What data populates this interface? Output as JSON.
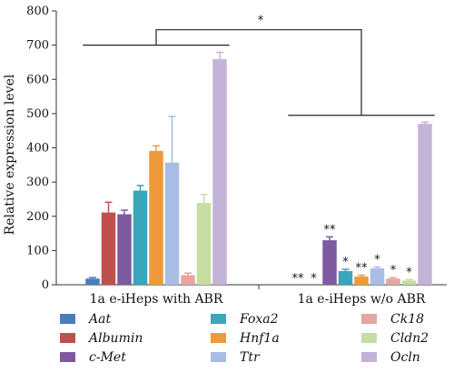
{
  "chart_data": {
    "type": "bar",
    "ylabel": "Relative expression level",
    "ylim": [
      0,
      800
    ],
    "yticks": [
      0,
      100,
      200,
      300,
      400,
      500,
      600,
      700,
      800
    ],
    "categories": [
      "1a e-iHeps with ABR",
      "1a e-iHeps w/o ABR"
    ],
    "series": [
      {
        "name": "Aat",
        "color": "#4a7ebb",
        "values": [
          18,
          0
        ],
        "errors": [
          3,
          0
        ],
        "marks": [
          "",
          "**"
        ]
      },
      {
        "name": "Albumin",
        "color": "#c0504d",
        "values": [
          211,
          0
        ],
        "errors": [
          30,
          0
        ],
        "marks": [
          "",
          "*"
        ]
      },
      {
        "name": "c-Met",
        "color": "#7e5ba0",
        "values": [
          206,
          130
        ],
        "errors": [
          12,
          10
        ],
        "marks": [
          "",
          "**"
        ]
      },
      {
        "name": "Foxa2",
        "color": "#3aa6ba",
        "values": [
          275,
          40
        ],
        "errors": [
          15,
          5
        ],
        "marks": [
          "",
          "*"
        ]
      },
      {
        "name": "Hnf1a",
        "color": "#ee9a3a",
        "values": [
          391,
          24
        ],
        "errors": [
          15,
          4
        ],
        "marks": [
          "",
          "**"
        ]
      },
      {
        "name": "Ttr",
        "color": "#a9bde4",
        "values": [
          357,
          48
        ],
        "errors": [
          135,
          4
        ],
        "marks": [
          "",
          "*"
        ]
      },
      {
        "name": "Ck18",
        "color": "#e6a5a0",
        "values": [
          28,
          18
        ],
        "errors": [
          6,
          3
        ],
        "marks": [
          "",
          "*"
        ]
      },
      {
        "name": "Cldn2",
        "color": "#c6dca0",
        "values": [
          239,
          12
        ],
        "errors": [
          25,
          3
        ],
        "marks": [
          "",
          "*"
        ]
      },
      {
        "name": "Ocln",
        "color": "#c3b3d7",
        "values": [
          659,
          470
        ],
        "errors": [
          20,
          5
        ],
        "marks": [
          "",
          ""
        ]
      }
    ],
    "comparison": {
      "left_level": 700,
      "right_level": 495,
      "top_level": 745,
      "mark": "*"
    },
    "legend": {
      "placement": "bottom",
      "columns": [
        [
          "Aat",
          "Albumin",
          "c-Met"
        ],
        [
          "Foxa2",
          "Hnf1a",
          "Ttr"
        ],
        [
          "Ck18",
          "Cldn2",
          "Ocln"
        ]
      ]
    },
    "legend_labels": {
      "Aat": "Aat",
      "Albumin": "Albumin",
      "c-Met": "c-Met",
      "Foxa2": "Foxa2",
      "Hnf1a": "Hnf1a",
      "Ttr": "Ttr",
      "Ck18": "Ck18",
      "Cldn2": "Cldn2",
      "Ocln": "Ocln"
    }
  }
}
